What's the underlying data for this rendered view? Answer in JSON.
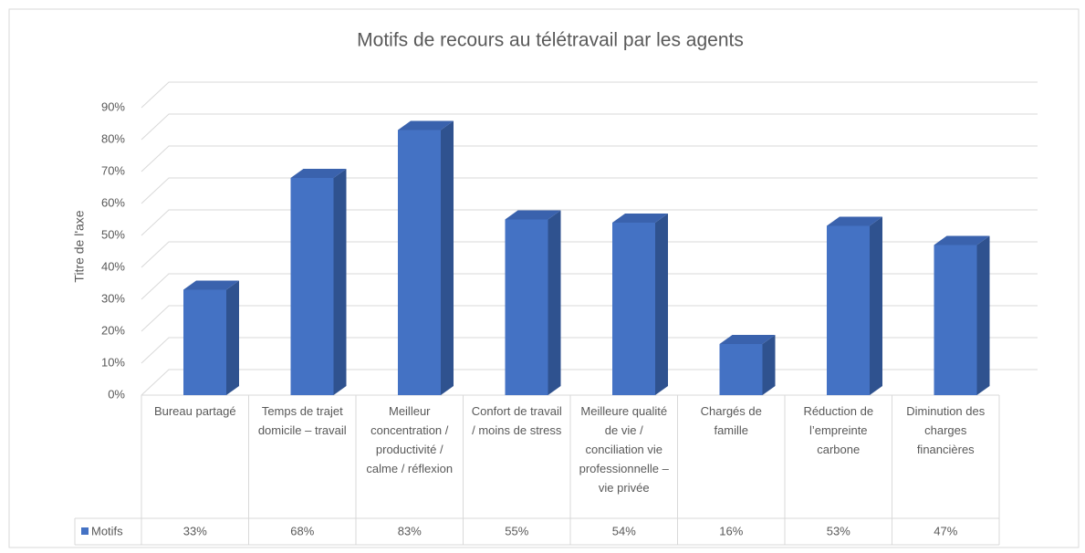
{
  "chart_data": {
    "type": "bar3d",
    "title": "Motifs de recours au télétravail par les agents",
    "ylabel": "Titre de l'axe",
    "categories": [
      "Bureau partagé",
      "Temps de trajet domicile – travail",
      "Meilleur concentration / productivité / calme / réflexion",
      "Confort de travail / moins de stress",
      "Meilleure qualité de vie / conciliation vie professionnelle – vie privée",
      "Chargés de famille",
      "Réduction de l’empreinte carbone",
      "Diminution des charges financières"
    ],
    "series": [
      {
        "name": "Motifs",
        "color": "#4472c4",
        "values": [
          33,
          68,
          83,
          55,
          54,
          16,
          53,
          47
        ],
        "value_labels": [
          "33%",
          "68%",
          "83%",
          "55%",
          "54%",
          "16%",
          "53%",
          "47%"
        ]
      }
    ],
    "ylim": [
      0,
      90
    ],
    "yticks": [
      {
        "value": 0,
        "label": "0%"
      },
      {
        "value": 10,
        "label": "10%"
      },
      {
        "value": 20,
        "label": "20%"
      },
      {
        "value": 30,
        "label": "30%"
      },
      {
        "value": 40,
        "label": "40%"
      },
      {
        "value": 50,
        "label": "50%"
      },
      {
        "value": 60,
        "label": "60%"
      },
      {
        "value": 70,
        "label": "70%"
      },
      {
        "value": 80,
        "label": "80%"
      },
      {
        "value": 90,
        "label": "90%"
      }
    ],
    "grid": true,
    "data_table": true
  }
}
